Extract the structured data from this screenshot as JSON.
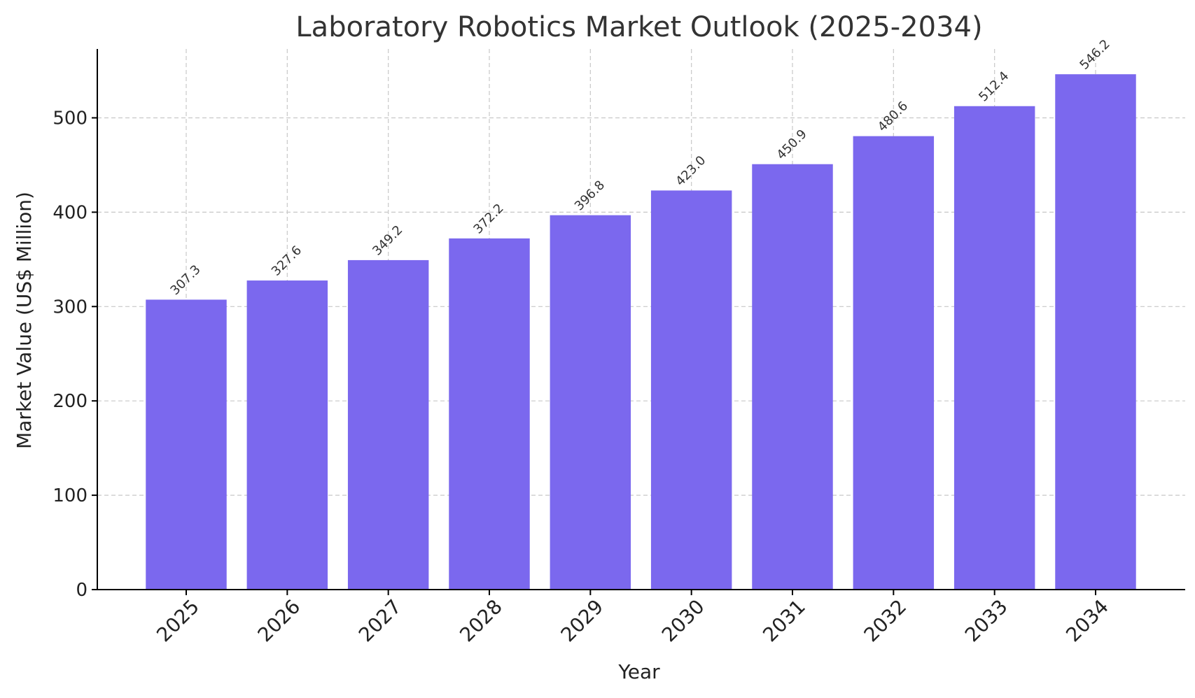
{
  "chart_data": {
    "type": "bar",
    "title": "Laboratory Robotics Market Outlook (2025-2034)",
    "xlabel": "Year",
    "ylabel": "Market Value (US$ Million)",
    "categories": [
      "2025",
      "2026",
      "2027",
      "2028",
      "2029",
      "2030",
      "2031",
      "2032",
      "2033",
      "2034"
    ],
    "values": [
      307.3,
      327.6,
      349.2,
      372.2,
      396.8,
      423.0,
      450.9,
      480.6,
      512.4,
      546.2
    ],
    "data_labels": [
      "307.3",
      "327.6",
      "349.2",
      "372.2",
      "396.8",
      "423.0",
      "450.9",
      "480.6",
      "512.4",
      "546.2"
    ],
    "ylim": [
      0,
      573
    ],
    "yticks": [
      0,
      100,
      200,
      300,
      400,
      500
    ],
    "grid": true,
    "bar_color": "#7b68ee"
  }
}
